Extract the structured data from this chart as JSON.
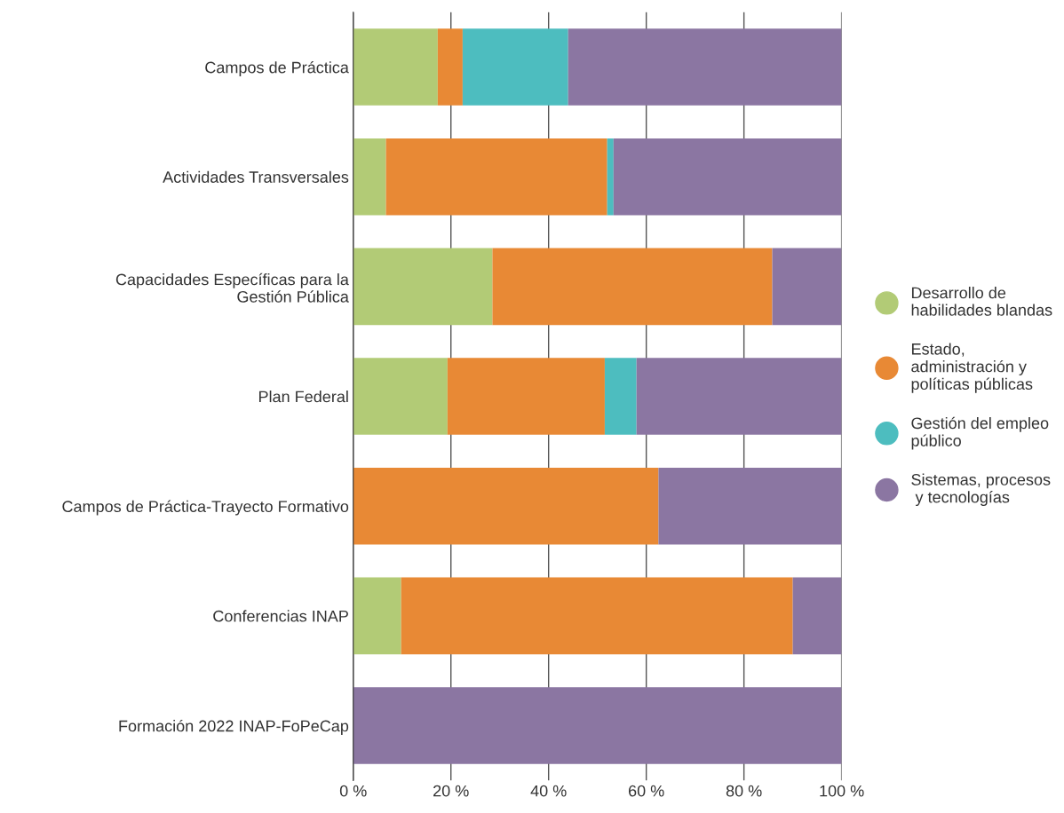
{
  "chart_data": {
    "type": "bar",
    "orientation": "horizontal",
    "stacked": true,
    "categories": [
      "Campos de Práctica",
      "Actividades Transversales",
      "Capacidades Específicas para la\nGestión Pública",
      "Plan Federal",
      "Campos de Práctica-Trayecto Formativo",
      "Conferencias INAP",
      "Formación 2022 INAP-FoPeCap"
    ],
    "series": [
      {
        "name": "Desarrollo de\nhabilidades blandas",
        "color": "#b2cb76",
        "values": [
          17.3,
          6.7,
          28.5,
          19.3,
          0,
          9.8,
          0
        ]
      },
      {
        "name": "Estado,\nadministración y\npolíticas públicas",
        "color": "#e88935",
        "values": [
          5.1,
          45.3,
          57.3,
          32.2,
          62.5,
          80.2,
          0
        ]
      },
      {
        "name": "Gestión del empleo\npúblico",
        "color": "#4dbdbf",
        "values": [
          21.6,
          1.3,
          0,
          6.5,
          0,
          0,
          0
        ]
      },
      {
        "name": "Sistemas, procesos\n y tecnologías",
        "color": "#8b76a2",
        "values": [
          56.0,
          46.7,
          14.2,
          42.0,
          37.5,
          10.0,
          100
        ]
      }
    ],
    "xlim": [
      0,
      100
    ],
    "xticks": [
      {
        "value": 0,
        "label": "0 %"
      },
      {
        "value": 20,
        "label": "20 %"
      },
      {
        "value": 40,
        "label": "40 %"
      },
      {
        "value": 60,
        "label": "60 %"
      },
      {
        "value": 80,
        "label": "80 %"
      },
      {
        "value": 100,
        "label": "100 %"
      }
    ],
    "grid": "x",
    "legend": "right",
    "marker": "circle"
  }
}
